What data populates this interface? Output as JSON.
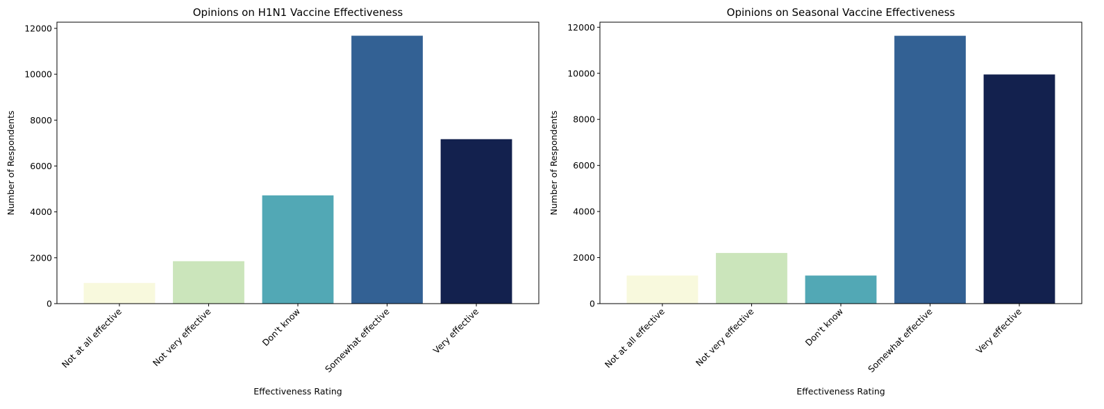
{
  "colors": [
    "#f8f9dd",
    "#cbe5bb",
    "#52a8b5",
    "#336194",
    "#13214e"
  ],
  "chart_data": [
    {
      "type": "bar",
      "title": "Opinions on H1N1 Vaccine Effectiveness",
      "xlabel": "Effectiveness Rating",
      "ylabel": "Number of Respondents",
      "categories": [
        "Not at all effective",
        "Not very effective",
        "Don't know",
        "Somewhat effective",
        "Very effective"
      ],
      "values": [
        900,
        1850,
        4720,
        11680,
        7170
      ],
      "ylim": [
        0,
        12270
      ],
      "yticks": [
        0,
        2000,
        4000,
        6000,
        8000,
        10000,
        12000
      ],
      "grid": false
    },
    {
      "type": "bar",
      "title": "Opinions on Seasonal Vaccine Effectiveness",
      "xlabel": "Effectiveness Rating",
      "ylabel": "Number of Respondents",
      "categories": [
        "Not at all effective",
        "Not very effective",
        "Don't know",
        "Somewhat effective",
        "Very effective"
      ],
      "values": [
        1220,
        2200,
        1220,
        11630,
        9950
      ],
      "ylim": [
        0,
        12220
      ],
      "yticks": [
        0,
        2000,
        4000,
        6000,
        8000,
        10000,
        12000
      ],
      "grid": false
    }
  ]
}
